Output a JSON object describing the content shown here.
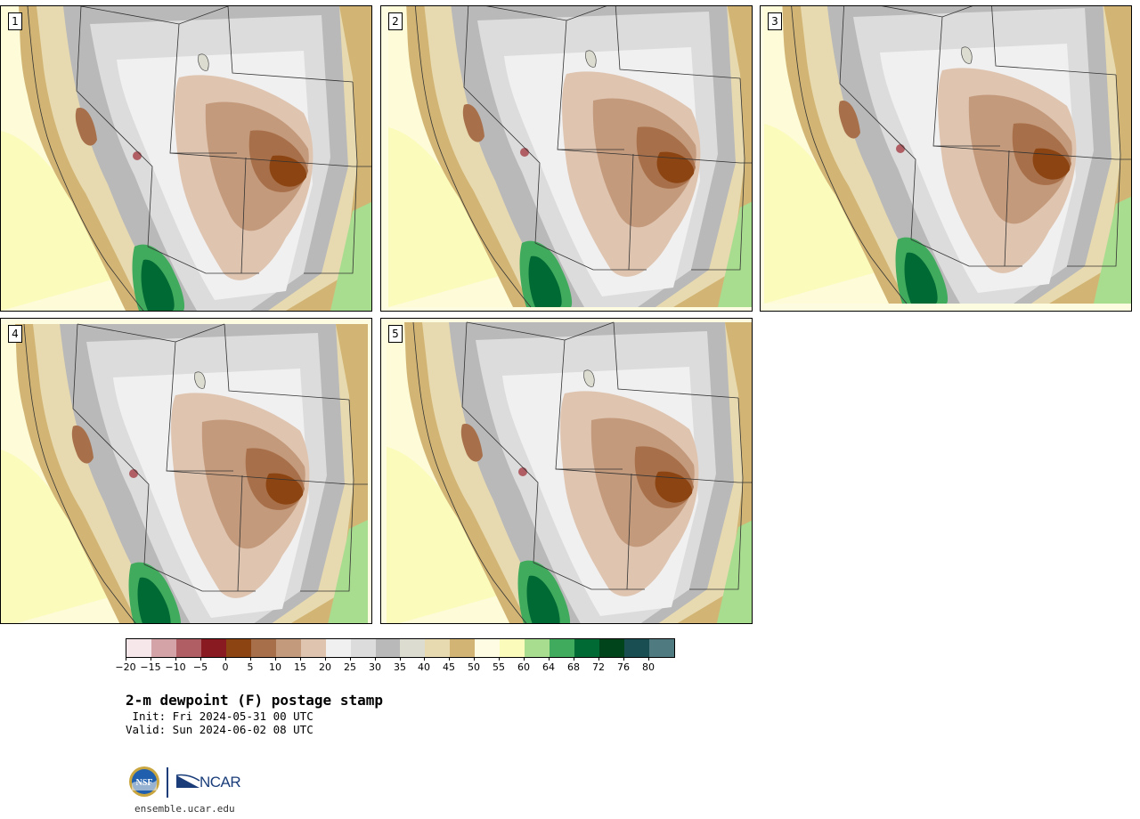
{
  "panels": [
    {
      "label": "1"
    },
    {
      "label": "2"
    },
    {
      "label": "3"
    },
    {
      "label": "4"
    },
    {
      "label": "5"
    }
  ],
  "colorbar": {
    "colors": [
      "#f6e8ea",
      "#d4a3a7",
      "#b05e63",
      "#8a1a21",
      "#8c4512",
      "#a8704a",
      "#c49a7c",
      "#dfc4b0",
      "#f0f0f0",
      "#dcdcdc",
      "#b9b9b9",
      "#dcdcd0",
      "#e8dab0",
      "#d2b574",
      "#fefde3",
      "#fbfbbc",
      "#a8dd8f",
      "#41ab5d",
      "#006a35",
      "#00441b",
      "#194e52",
      "#4f7b80"
    ],
    "tick_labels": [
      "−20",
      "−15",
      "−10",
      "−5",
      "0",
      "5",
      "10",
      "15",
      "20",
      "25",
      "30",
      "35",
      "40",
      "45",
      "50",
      "55",
      "60",
      "64",
      "68",
      "72",
      "76",
      "80"
    ]
  },
  "title": "2-m dewpoint (F) postage stamp",
  "init_line": " Init: Fri 2024-05-31 00 UTC",
  "valid_line": "Valid: Sun 2024-06-02 08 UTC",
  "logos": {
    "nsf": "NSF",
    "ncar": "NCAR"
  },
  "footer_url": "ensemble.ucar.edu"
}
